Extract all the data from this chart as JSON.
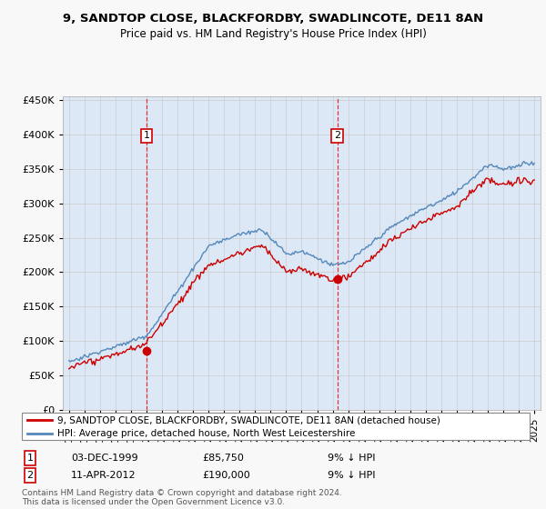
{
  "title1": "9, SANDTOP CLOSE, BLACKFORDBY, SWADLINCOTE, DE11 8AN",
  "title2": "Price paid vs. HM Land Registry's House Price Index (HPI)",
  "legend_label1": "9, SANDTOP CLOSE, BLACKFORDBY, SWADLINCOTE, DE11 8AN (detached house)",
  "legend_label2": "HPI: Average price, detached house, North West Leicestershire",
  "annotation1_date": "03-DEC-1999",
  "annotation1_price": "£85,750",
  "annotation1_hpi": "9% ↓ HPI",
  "annotation1_year": 2000.0,
  "annotation1_value": 85750,
  "annotation2_date": "11-APR-2012",
  "annotation2_price": "£190,000",
  "annotation2_hpi": "9% ↓ HPI",
  "annotation2_year": 2012.3,
  "annotation2_value": 190000,
  "footer": "Contains HM Land Registry data © Crown copyright and database right 2024.\nThis data is licensed under the Open Government Licence v3.0.",
  "ylim": [
    0,
    455000
  ],
  "yticks": [
    0,
    50000,
    100000,
    150000,
    200000,
    250000,
    300000,
    350000,
    400000,
    450000
  ],
  "xlim_start": 1994.6,
  "xlim_end": 2025.4,
  "line_color_price": "#cc0000",
  "line_color_hpi": "#5588bb",
  "fill_color": "#dce8f5",
  "plot_bg_color": "#ffffff",
  "fig_bg_color": "#f8f8f8",
  "vline_color": "#dd2222",
  "marker_color": "#cc0000",
  "box_color": "#cc0000",
  "grid_color": "#cccccc"
}
